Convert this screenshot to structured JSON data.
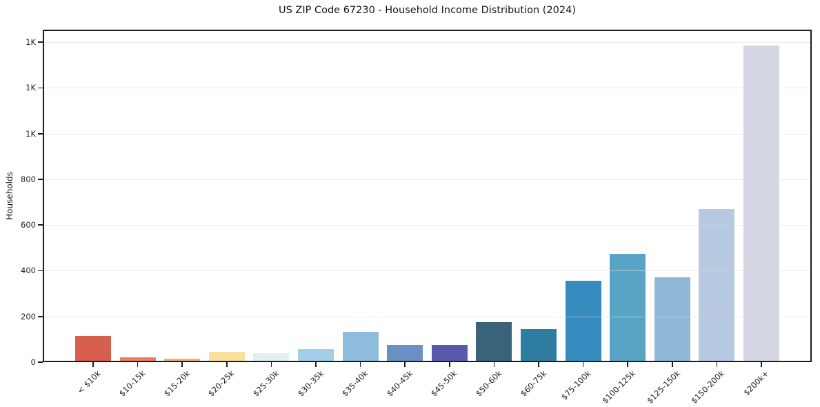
{
  "chart_data": {
    "type": "bar",
    "title": "US ZIP Code 67230 - Household Income Distribution (2024)",
    "xlabel": "",
    "ylabel": "Households",
    "categories": [
      "< $10k",
      "$10-15k",
      "$15-20k",
      "$20-25k",
      "$25-30k",
      "$30-35k",
      "$35-40k",
      "$40-45k",
      "$45-50k",
      "$50-60k",
      "$60-75k",
      "$75-100k",
      "$100-125k",
      "$125-150k",
      "$150-200k",
      "$200k+"
    ],
    "values": [
      110,
      16,
      10,
      38,
      34,
      52,
      128,
      70,
      70,
      168,
      138,
      350,
      468,
      365,
      665,
      1380
    ],
    "bar_colors": [
      "#d6604d",
      "#ec7f5e",
      "#f2b178",
      "#fbdf9d",
      "#e3eff1",
      "#a3cee8",
      "#8fbcdc",
      "#6b8fc5",
      "#5a5aad",
      "#3a6278",
      "#2e7da1",
      "#358bbd",
      "#57a4c6",
      "#90b6d7",
      "#b7c9e1",
      "#d4d6e4"
    ],
    "ylim": [
      0,
      1455
    ],
    "yticks": [
      {
        "value": 0,
        "label": "0"
      },
      {
        "value": 200,
        "label": "200"
      },
      {
        "value": 400,
        "label": "400"
      },
      {
        "value": 600,
        "label": "600"
      },
      {
        "value": 800,
        "label": "800"
      },
      {
        "value": 1000,
        "label": "1K"
      },
      {
        "value": 1200,
        "label": "1K"
      },
      {
        "value": 1400,
        "label": "1K"
      }
    ],
    "grid": "horizontal",
    "legend": "none",
    "colors": {
      "background": "#ffffff",
      "spine": "#1a1a1a",
      "gridline": "#e9e9e9",
      "text": "#1a1a1a"
    }
  }
}
